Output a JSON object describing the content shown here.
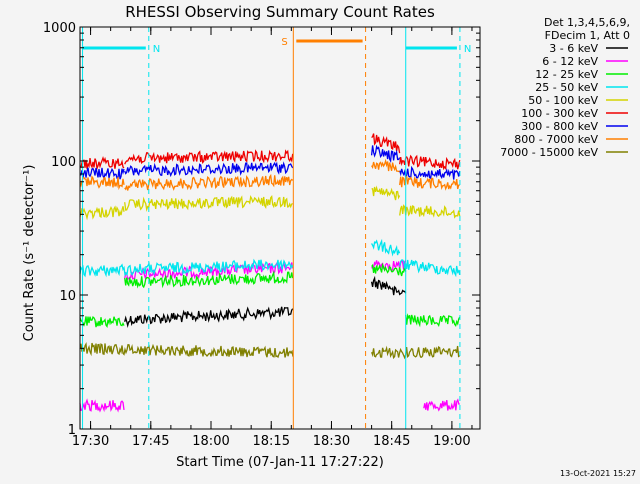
{
  "chart_data": {
    "type": "line",
    "title": "RHESSI Observing Summary Count Rates",
    "xlabel": "Start Time (07-Jan-11 17:27:22)",
    "ylabel": "Count Rate (s⁻¹ detector⁻¹)",
    "y_scale": "log",
    "ylim": [
      1,
      1000
    ],
    "xlim": [
      "17:27:22",
      "19:07:00"
    ],
    "x_ticks": [
      "17:30",
      "17:45",
      "18:00",
      "18:15",
      "18:30",
      "18:45",
      "19:00"
    ],
    "y_ticks": [
      "1",
      "10",
      "100",
      "1000"
    ],
    "legend": {
      "placement": "right",
      "header": [
        "Det 1,3,4,5,6,9,",
        "FDecim 1, Att 0"
      ],
      "entries": [
        {
          "label": "3 - 6 keV",
          "color": "#000000"
        },
        {
          "label": "6 - 12 keV",
          "color": "#ff00ff"
        },
        {
          "label": "12 - 25 keV",
          "color": "#00ee00"
        },
        {
          "label": "25 - 50 keV",
          "color": "#00e5ee"
        },
        {
          "label": "50 - 100 keV",
          "color": "#d4d400"
        },
        {
          "label": "100 - 300 keV",
          "color": "#ee0000"
        },
        {
          "label": "300 - 800 keV",
          "color": "#0000ee"
        },
        {
          "label": "800 - 7000 keV",
          "color": "#ff7f00"
        },
        {
          "label": "7000 - 15000 keV",
          "color": "#808000"
        }
      ]
    },
    "data_gap": [
      "18:20:30",
      "18:38:30"
    ],
    "intervals": [
      {
        "label": "N",
        "color": "#00e5ee",
        "start": "17:28:00",
        "end": "17:44:30"
      },
      {
        "label": "N",
        "color": "#00e5ee",
        "start": "18:48:30",
        "end": "19:02:00"
      },
      {
        "label": "S",
        "color": "#ff7f00",
        "start": "18:20:30",
        "end": "18:38:30"
      }
    ],
    "series": [
      {
        "label": "3 - 6 keV",
        "segments": [
          {
            "t0": "17:27:22",
            "t1": "17:38:30",
            "v0": 0,
            "v1": 0
          },
          {
            "t0": "17:38:30",
            "t1": "18:20:30",
            "v0": 6.5,
            "v1": 7.5
          },
          {
            "t0": "18:40:00",
            "t1": "18:45:00",
            "v0": 12.5,
            "v1": 11.5
          },
          {
            "t0": "18:45:00",
            "t1": "18:48:30",
            "v0": 10.5,
            "v1": 10.5
          }
        ]
      },
      {
        "label": "6 - 12 keV",
        "segments": [
          {
            "t0": "17:27:22",
            "t1": "17:38:30",
            "v0": 1.5,
            "v1": 1.5
          },
          {
            "t0": "17:38:30",
            "t1": "18:20:30",
            "v0": 14,
            "v1": 16
          },
          {
            "t0": "18:40:00",
            "t1": "18:48:30",
            "v0": 17,
            "v1": 16.5
          },
          {
            "t0": "18:53:00",
            "t1": "19:02:00",
            "v0": 1.5,
            "v1": 1.5
          }
        ]
      },
      {
        "label": "12 - 25 keV",
        "segments": [
          {
            "t0": "17:27:22",
            "t1": "17:38:30",
            "v0": 6.3,
            "v1": 6.3
          },
          {
            "t0": "17:38:30",
            "t1": "18:20:30",
            "v0": 12.5,
            "v1": 13.5
          },
          {
            "t0": "18:40:00",
            "t1": "18:48:30",
            "v0": 15.5,
            "v1": 15
          },
          {
            "t0": "18:48:30",
            "t1": "19:02:00",
            "v0": 6.5,
            "v1": 6.3
          }
        ]
      },
      {
        "label": "25 - 50 keV",
        "segments": [
          {
            "t0": "17:27:22",
            "t1": "18:20:30",
            "v0": 15,
            "v1": 17
          },
          {
            "t0": "18:40:00",
            "t1": "18:47:00",
            "v0": 24,
            "v1": 21
          },
          {
            "t0": "18:47:00",
            "t1": "19:02:00",
            "v0": 17,
            "v1": 15
          }
        ]
      },
      {
        "label": "50 - 100 keV",
        "segments": [
          {
            "t0": "17:27:22",
            "t1": "17:38:30",
            "v0": 41,
            "v1": 42
          },
          {
            "t0": "17:38:30",
            "t1": "18:20:30",
            "v0": 47,
            "v1": 50
          },
          {
            "t0": "18:40:00",
            "t1": "18:47:00",
            "v0": 60,
            "v1": 55
          },
          {
            "t0": "18:47:00",
            "t1": "19:02:00",
            "v0": 43,
            "v1": 41
          }
        ]
      },
      {
        "label": "100 - 300 keV",
        "segments": [
          {
            "t0": "17:27:22",
            "t1": "17:38:30",
            "v0": 96,
            "v1": 96
          },
          {
            "t0": "17:38:30",
            "t1": "18:20:30",
            "v0": 104,
            "v1": 110
          },
          {
            "t0": "18:40:00",
            "t1": "18:47:00",
            "v0": 148,
            "v1": 125
          },
          {
            "t0": "18:47:00",
            "t1": "19:02:00",
            "v0": 100,
            "v1": 95
          }
        ]
      },
      {
        "label": "300 - 800 keV",
        "segments": [
          {
            "t0": "17:27:22",
            "t1": "17:38:30",
            "v0": 82,
            "v1": 80
          },
          {
            "t0": "17:38:30",
            "t1": "18:20:30",
            "v0": 84,
            "v1": 90
          },
          {
            "t0": "18:40:00",
            "t1": "18:47:00",
            "v0": 120,
            "v1": 105
          },
          {
            "t0": "18:47:00",
            "t1": "19:02:00",
            "v0": 82,
            "v1": 78
          }
        ]
      },
      {
        "label": "800 - 7000 keV",
        "segments": [
          {
            "t0": "17:27:22",
            "t1": "17:38:30",
            "v0": 70,
            "v1": 69
          },
          {
            "t0": "17:38:30",
            "t1": "18:20:30",
            "v0": 66,
            "v1": 72
          },
          {
            "t0": "18:40:00",
            "t1": "18:47:00",
            "v0": 95,
            "v1": 88
          },
          {
            "t0": "18:47:00",
            "t1": "19:02:00",
            "v0": 70,
            "v1": 67
          }
        ]
      },
      {
        "label": "7000 - 15000 keV",
        "segments": [
          {
            "t0": "17:27:22",
            "t1": "18:20:30",
            "v0": 4.0,
            "v1": 3.7
          },
          {
            "t0": "18:40:00",
            "t1": "19:02:00",
            "v0": 3.7,
            "v1": 3.8
          }
        ]
      }
    ],
    "footer_timestamp": "13-Oct-2021 15:27"
  }
}
